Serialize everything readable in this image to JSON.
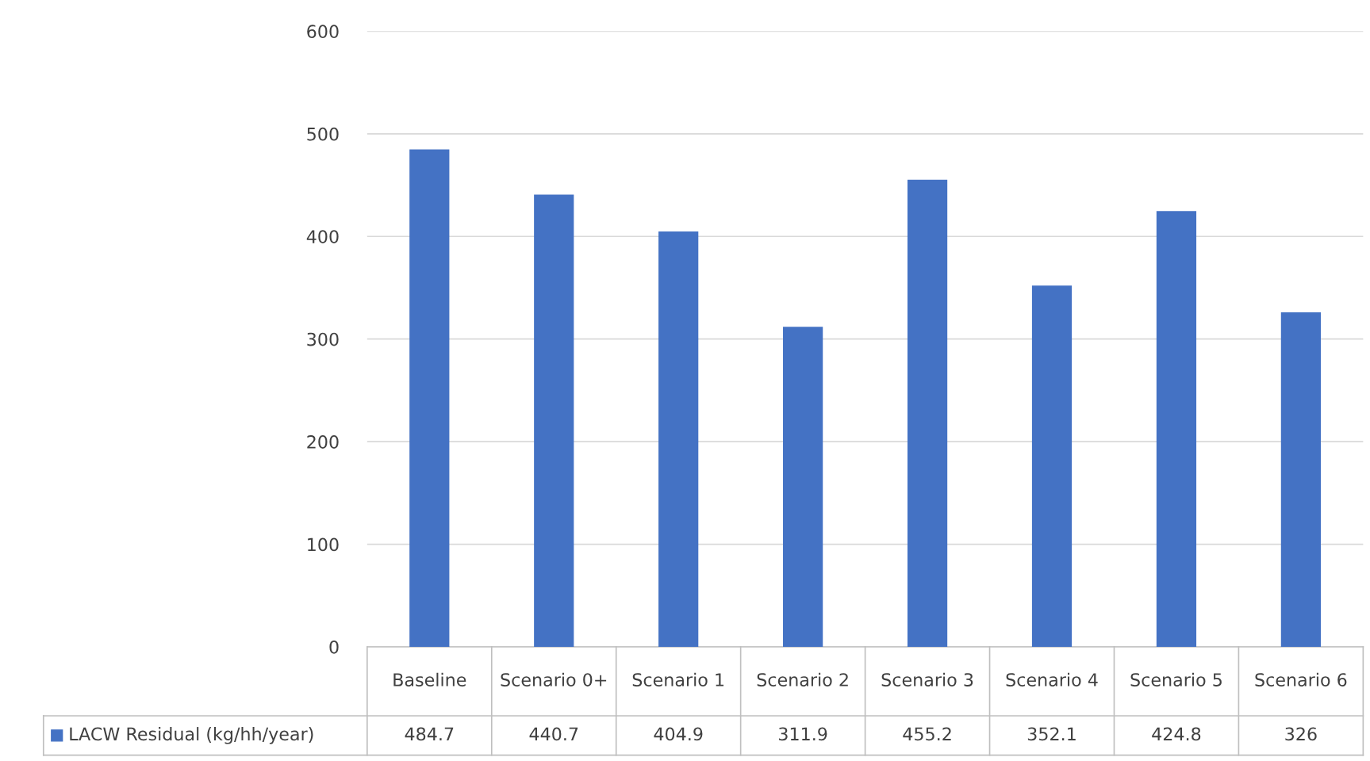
{
  "chart_data": {
    "type": "bar",
    "categories": [
      "Baseline",
      "Scenario 0+",
      "Scenario 1",
      "Scenario 2",
      "Scenario 3",
      "Scenario 4",
      "Scenario 5",
      "Scenario 6"
    ],
    "series": [
      {
        "name": "LACW Residual (kg/hh/year)",
        "color": "#4472c4",
        "values": [
          484.7,
          440.7,
          404.9,
          311.9,
          455.2,
          352.1,
          424.8,
          326
        ]
      }
    ],
    "ylim": [
      0,
      600
    ],
    "yticks": [
      0,
      100,
      200,
      300,
      400,
      500,
      600
    ],
    "grid": "y",
    "data_labels": true
  }
}
